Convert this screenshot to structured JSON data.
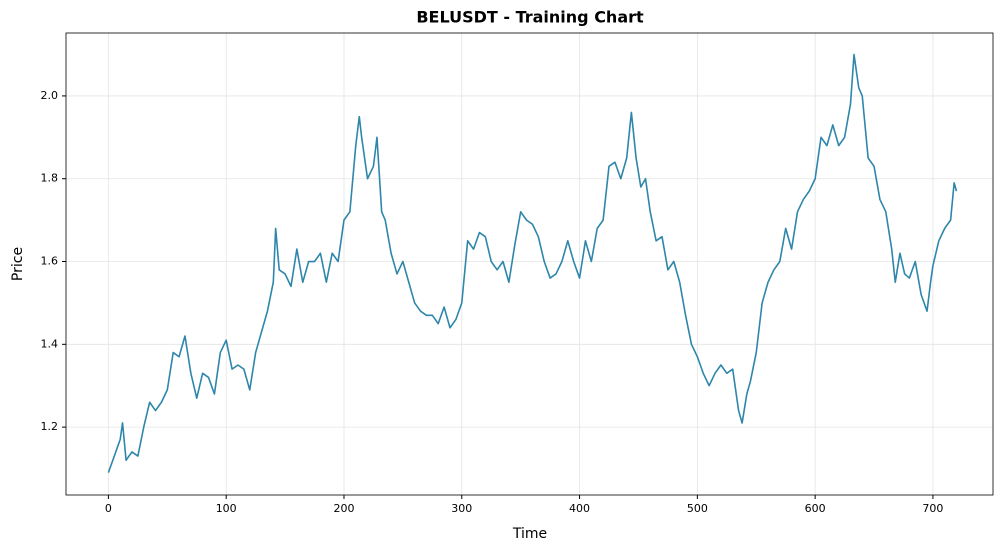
{
  "chart_data": {
    "type": "line",
    "title": "BELUSDT - Training Chart",
    "x_label": "Time",
    "y_label": "Price",
    "x": [
      0,
      5,
      10,
      12,
      15,
      20,
      25,
      30,
      35,
      40,
      45,
      50,
      55,
      60,
      65,
      70,
      75,
      80,
      85,
      90,
      95,
      100,
      105,
      110,
      115,
      120,
      125,
      130,
      135,
      140,
      142,
      145,
      150,
      155,
      160,
      165,
      170,
      175,
      180,
      185,
      190,
      195,
      200,
      205,
      210,
      213,
      215,
      220,
      225,
      228,
      232,
      235,
      240,
      245,
      250,
      255,
      260,
      265,
      270,
      275,
      280,
      285,
      290,
      295,
      300,
      305,
      310,
      315,
      320,
      325,
      330,
      335,
      340,
      345,
      350,
      355,
      360,
      365,
      370,
      375,
      380,
      385,
      390,
      395,
      400,
      405,
      410,
      415,
      420,
      425,
      430,
      435,
      440,
      444,
      448,
      452,
      456,
      460,
      465,
      470,
      475,
      480,
      485,
      490,
      495,
      500,
      505,
      510,
      515,
      520,
      525,
      530,
      535,
      538,
      542,
      545,
      550,
      555,
      560,
      565,
      570,
      575,
      580,
      585,
      590,
      595,
      600,
      605,
      610,
      615,
      620,
      625,
      630,
      633,
      637,
      640,
      645,
      650,
      655,
      660,
      665,
      668,
      672,
      676,
      680,
      685,
      690,
      695,
      698,
      700,
      705,
      710,
      715,
      718,
      720
    ],
    "series": [
      {
        "name": "Price",
        "color": "#2e86ab",
        "values": [
          1.09,
          1.13,
          1.17,
          1.21,
          1.12,
          1.14,
          1.13,
          1.2,
          1.26,
          1.24,
          1.26,
          1.29,
          1.38,
          1.37,
          1.42,
          1.33,
          1.27,
          1.33,
          1.32,
          1.28,
          1.38,
          1.41,
          1.34,
          1.35,
          1.34,
          1.29,
          1.38,
          1.43,
          1.48,
          1.55,
          1.68,
          1.58,
          1.57,
          1.54,
          1.63,
          1.55,
          1.6,
          1.6,
          1.62,
          1.55,
          1.62,
          1.6,
          1.7,
          1.72,
          1.88,
          1.95,
          1.9,
          1.8,
          1.83,
          1.9,
          1.72,
          1.7,
          1.62,
          1.57,
          1.6,
          1.55,
          1.5,
          1.48,
          1.47,
          1.47,
          1.45,
          1.49,
          1.44,
          1.46,
          1.5,
          1.65,
          1.63,
          1.67,
          1.66,
          1.6,
          1.58,
          1.6,
          1.55,
          1.64,
          1.72,
          1.7,
          1.69,
          1.66,
          1.6,
          1.56,
          1.57,
          1.6,
          1.65,
          1.6,
          1.56,
          1.65,
          1.6,
          1.68,
          1.7,
          1.83,
          1.84,
          1.8,
          1.85,
          1.96,
          1.85,
          1.78,
          1.8,
          1.72,
          1.65,
          1.66,
          1.58,
          1.6,
          1.55,
          1.47,
          1.4,
          1.37,
          1.33,
          1.3,
          1.33,
          1.35,
          1.33,
          1.34,
          1.24,
          1.21,
          1.28,
          1.31,
          1.38,
          1.5,
          1.55,
          1.58,
          1.6,
          1.68,
          1.63,
          1.72,
          1.75,
          1.77,
          1.8,
          1.9,
          1.88,
          1.93,
          1.88,
          1.9,
          1.98,
          2.1,
          2.02,
          2.0,
          1.85,
          1.83,
          1.75,
          1.72,
          1.63,
          1.55,
          1.62,
          1.57,
          1.56,
          1.6,
          1.52,
          1.48,
          1.55,
          1.59,
          1.65,
          1.68,
          1.7,
          1.79,
          1.77
        ]
      }
    ],
    "xlim": [
      -36,
      751
    ],
    "ylim": [
      1.036,
      2.152
    ],
    "xticks": [
      0,
      100,
      200,
      300,
      400,
      500,
      600,
      700
    ],
    "yticks": [
      1.2,
      1.4,
      1.6,
      1.8,
      {
        "value": 2,
        "label": "2.0"
      }
    ],
    "grid": true
  }
}
